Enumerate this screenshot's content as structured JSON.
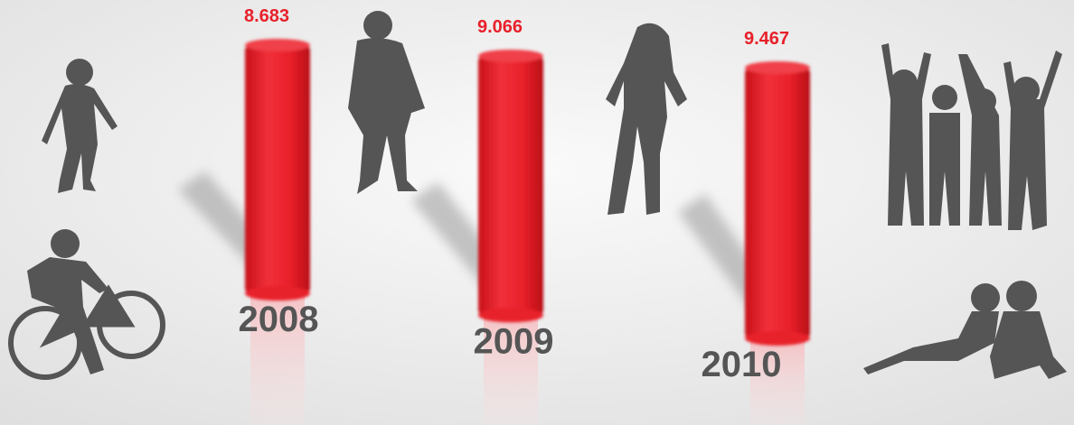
{
  "chart_data": {
    "type": "bar",
    "categories": [
      "2008",
      "2009",
      "2010"
    ],
    "values": [
      8.683,
      9.066,
      9.467
    ],
    "color": "#e8202a"
  }
}
